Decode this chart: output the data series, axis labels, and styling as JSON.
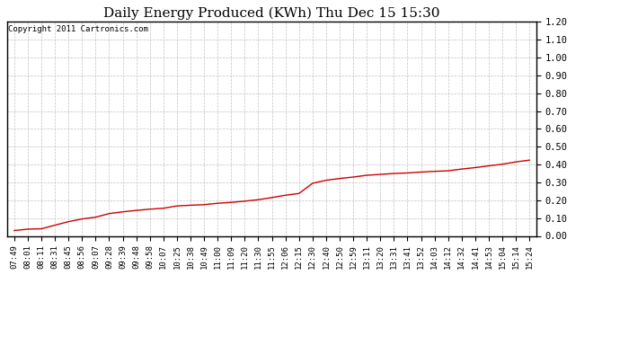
{
  "title": "Daily Energy Produced (KWh) Thu Dec 15 15:30",
  "copyright_text": "Copyright 2011 Cartronics.com",
  "line_color": "#cc0000",
  "background_color": "#ffffff",
  "grid_color": "#bbbbbb",
  "ylim": [
    0.0,
    1.2
  ],
  "yticks": [
    0.0,
    0.1,
    0.2,
    0.3,
    0.4,
    0.5,
    0.6,
    0.7,
    0.8,
    0.9,
    1.0,
    1.1,
    1.2
  ],
  "x_labels": [
    "07:49",
    "08:01",
    "08:11",
    "08:31",
    "08:45",
    "08:56",
    "09:07",
    "09:28",
    "09:39",
    "09:48",
    "09:58",
    "10:07",
    "10:25",
    "10:38",
    "10:49",
    "11:00",
    "11:09",
    "11:20",
    "11:30",
    "11:55",
    "12:06",
    "12:15",
    "12:30",
    "12:40",
    "12:50",
    "12:59",
    "13:11",
    "13:20",
    "13:31",
    "13:41",
    "13:52",
    "14:03",
    "14:12",
    "14:32",
    "14:41",
    "14:53",
    "15:04",
    "15:14",
    "15:24"
  ],
  "y_values": [
    0.03,
    0.038,
    0.04,
    0.06,
    0.08,
    0.095,
    0.105,
    0.125,
    0.135,
    0.143,
    0.15,
    0.155,
    0.168,
    0.172,
    0.175,
    0.183,
    0.188,
    0.195,
    0.203,
    0.215,
    0.228,
    0.238,
    0.295,
    0.312,
    0.322,
    0.33,
    0.34,
    0.345,
    0.35,
    0.353,
    0.358,
    0.362,
    0.365,
    0.375,
    0.383,
    0.393,
    0.402,
    0.415,
    0.425
  ],
  "title_fontsize": 11,
  "copyright_fontsize": 6.5,
  "tick_fontsize": 6.5,
  "ytick_fontsize": 7.5
}
